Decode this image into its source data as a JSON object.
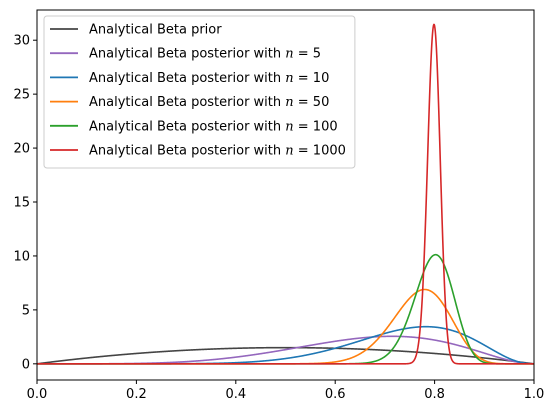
{
  "chart_data": {
    "type": "line",
    "xlim": [
      0,
      1
    ],
    "ylim": [
      -1.5,
      32.8
    ],
    "x_ticks": [
      "0.0",
      "0.2",
      "0.4",
      "0.6",
      "0.8",
      "1.0"
    ],
    "y_ticks": [
      "0",
      "5",
      "10",
      "15",
      "20",
      "25",
      "30"
    ],
    "grid": false,
    "legend_position": "top-left",
    "series": [
      {
        "name": "Analytical Beta prior",
        "label_text": "Analytical Beta prior",
        "label_n": "",
        "color": "#444444",
        "alpha": 2,
        "beta": 2
      },
      {
        "name": "Analytical Beta posterior with n = 5",
        "label_text": "Analytical Beta posterior with ",
        "label_n": "5",
        "color": "#9467bd",
        "alpha": 6,
        "beta": 3
      },
      {
        "name": "Analytical Beta posterior with n = 10",
        "label_text": "Analytical Beta posterior with ",
        "label_n": "10",
        "color": "#1f77b4",
        "alpha": 10,
        "beta": 3.5
      },
      {
        "name": "Analytical Beta posterior with n = 50",
        "label_text": "Analytical Beta posterior with ",
        "label_n": "50",
        "color": "#ff7f0e",
        "alpha": 40,
        "beta": 12
      },
      {
        "name": "Analytical Beta posterior with n = 100",
        "label_text": "Analytical Beta posterior with ",
        "label_n": "100",
        "color": "#2ca02c",
        "alpha": 82,
        "beta": 21
      },
      {
        "name": "Analytical Beta posterior with n = 1000",
        "label_text": "Analytical Beta posterior with ",
        "label_n": "1000",
        "color": "#d62728",
        "alpha": 799,
        "beta": 202
      }
    ]
  }
}
